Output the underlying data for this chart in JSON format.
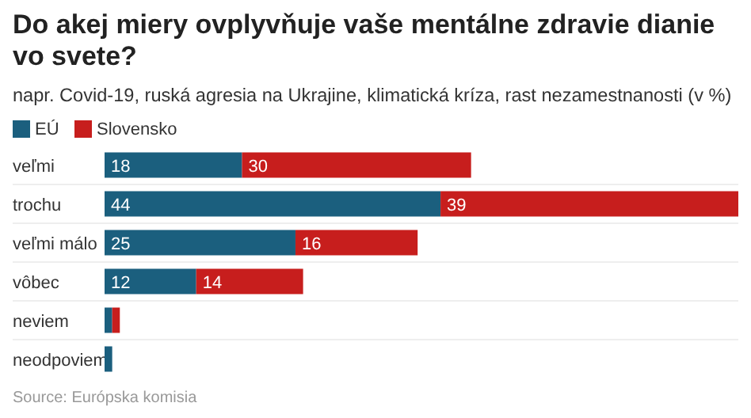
{
  "chart_data": {
    "type": "bar",
    "orientation": "horizontal",
    "stacked": true,
    "title": "Do akej miery ovplyvňuje vaše mentálne zdravie dianie vo svete?",
    "subtitle": "napr. Covid-19, ruská agresia na Ukrajine, klimatická kríza, rast nezamestnanosti (v %)",
    "categories": [
      "veľmi",
      "trochu",
      "veľmi málo",
      "vôbec",
      "neviem",
      "neodpoviem"
    ],
    "series": [
      {
        "name": "EÚ",
        "color": "#1b5f7e",
        "values": [
          18,
          44,
          25,
          12,
          1,
          1
        ],
        "value_labels": [
          "18",
          "44",
          "25",
          "12",
          null,
          null
        ]
      },
      {
        "name": "Slovensko",
        "color": "#c71e1d",
        "values": [
          30,
          39,
          16,
          14,
          1,
          0
        ],
        "value_labels": [
          "30",
          "39",
          "16",
          "14",
          null,
          null
        ]
      }
    ],
    "legend": "top left",
    "annotations": [
      "Source: Európska komisia"
    ]
  }
}
